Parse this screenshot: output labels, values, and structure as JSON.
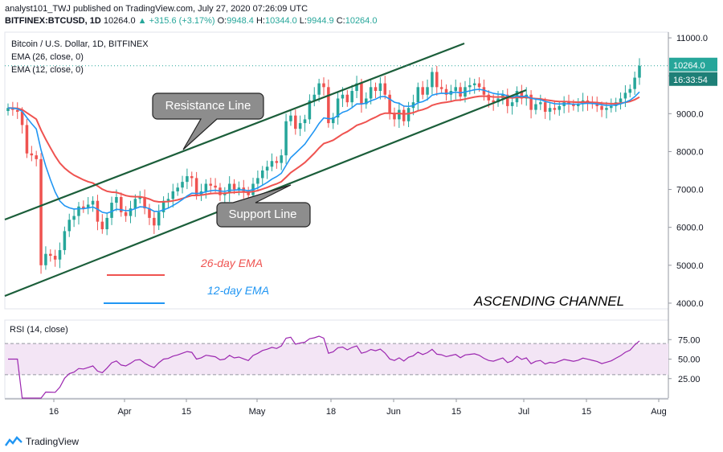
{
  "header": {
    "publish_line": "analyst101_TWJ published on TradingView.com, July 27, 2020 07:26:09 UTC",
    "symbol": "BITFINEX:BTCUSD, 1D",
    "price": "10264.0",
    "change": "▲ +315.6 (+3.17%)",
    "o_label": "O:",
    "o_value": "9948.4",
    "h_label": "H:",
    "h_value": "10344.0",
    "l_label": "L:",
    "l_value": "9944.9",
    "c_label": "C:",
    "c_value": "10264.0"
  },
  "brand": {
    "name": "TradingView"
  },
  "colors": {
    "up": "#26a69a",
    "down": "#ef5350",
    "ema26": "#ef5350",
    "ema12": "#2196f3",
    "channel": "#1b5e3a",
    "rsi_line": "#9c27b0",
    "rsi_band": "#f3e5f5"
  },
  "chart_data": [
    {
      "type": "candlestick",
      "title": "Bitcoin / U.S. Dollar, 1D, BITFINEX",
      "indicators": [
        "EMA (26, close, 0)",
        "EMA (12, close, 0)"
      ],
      "x_tick_labels": [
        "16",
        "Apr",
        "15",
        "May",
        "18",
        "Jun",
        "15",
        "Jul",
        "15",
        "Aug"
      ],
      "y_tick_labels": [
        "11000.0",
        "10000.0",
        "9000.0",
        "8000.0",
        "7000.0",
        "6000.0",
        "5000.0",
        "4000.0"
      ],
      "ylim": [
        3850,
        11150
      ],
      "last_price_label": "10264.0",
      "countdown_label": "16:33:54",
      "annotations": {
        "resistance": "Resistance Line",
        "support": "Support Line",
        "ema26": "26-day EMA",
        "ema12": "12-day EMA",
        "pattern": "ASCENDING CHANNEL"
      },
      "approx_close": [
        9150,
        9100,
        9050,
        8700,
        7950,
        7900,
        7800,
        5000,
        5300,
        5250,
        5150,
        5400,
        5900,
        6200,
        6300,
        6550,
        6500,
        6600,
        6700,
        6150,
        5950,
        6250,
        6650,
        6800,
        6400,
        6300,
        6500,
        6750,
        6800,
        6500,
        6250,
        6050,
        6400,
        6700,
        6750,
        6950,
        7050,
        7200,
        7350,
        7300,
        6850,
        6950,
        7150,
        7100,
        7050,
        6850,
        6900,
        7150,
        7000,
        7050,
        6950,
        6850,
        7150,
        7300,
        7500,
        7600,
        7750,
        7700,
        7900,
        8800,
        8950,
        8600,
        8750,
        8850,
        9350,
        9500,
        9800,
        9700,
        8750,
        8900,
        9400,
        9500,
        9300,
        9600,
        9800,
        9250,
        9400,
        9700,
        9600,
        9800,
        9500,
        9000,
        8850,
        9100,
        8800,
        9150,
        9300,
        9700,
        9500,
        9700,
        10100,
        9700,
        9650,
        9500,
        9600,
        9700,
        9450,
        9700,
        9750,
        9800,
        9700,
        9500,
        9350,
        9300,
        9400,
        9500,
        9200,
        9300,
        9600,
        9400,
        9500,
        9100,
        9250,
        9300,
        9050,
        9150,
        9100,
        9200,
        9300,
        9250,
        9200,
        9250,
        9350,
        9300,
        9250,
        9200,
        9100,
        9150,
        9200,
        9300,
        9400,
        9550,
        9650,
        9950,
        10264
      ],
      "rsi": {
        "label": "RSI (14, close)",
        "y_tick_labels": [
          "75.00",
          "50.00",
          "25.00"
        ],
        "ylim": [
          0,
          100
        ],
        "bands": [
          30,
          70
        ]
      }
    }
  ]
}
